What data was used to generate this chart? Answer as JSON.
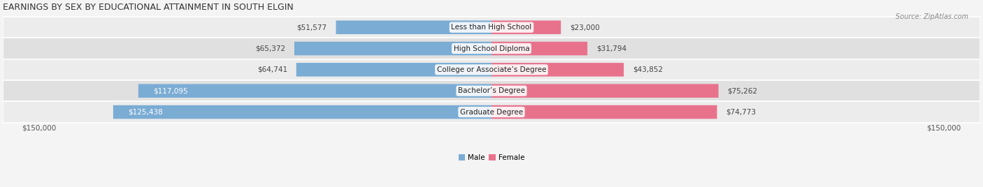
{
  "title": "EARNINGS BY SEX BY EDUCATIONAL ATTAINMENT IN SOUTH ELGIN",
  "source": "Source: ZipAtlas.com",
  "categories": [
    "Less than High School",
    "High School Diploma",
    "College or Associate’s Degree",
    "Bachelor’s Degree",
    "Graduate Degree"
  ],
  "male_values": [
    51577,
    65372,
    64741,
    117095,
    125438
  ],
  "female_values": [
    23000,
    31794,
    43852,
    75262,
    74773
  ],
  "male_labels": [
    "$51,577",
    "$65,372",
    "$64,741",
    "$117,095",
    "$125,438"
  ],
  "female_labels": [
    "$23,000",
    "$31,794",
    "$43,852",
    "$75,262",
    "$74,773"
  ],
  "male_label_inside": [
    false,
    false,
    false,
    true,
    true
  ],
  "male_color": "#7bacd4",
  "female_color": "#e8728c",
  "row_bg_colors": [
    "#ececec",
    "#e0e0e0",
    "#ececec",
    "#e0e0e0",
    "#ececec"
  ],
  "max_value": 150000,
  "x_label_left": "$150,000",
  "x_label_right": "$150,000",
  "background_color": "#f4f4f4",
  "title_fontsize": 9,
  "label_fontsize": 7.5,
  "cat_fontsize": 7.5,
  "axis_fontsize": 7.5
}
